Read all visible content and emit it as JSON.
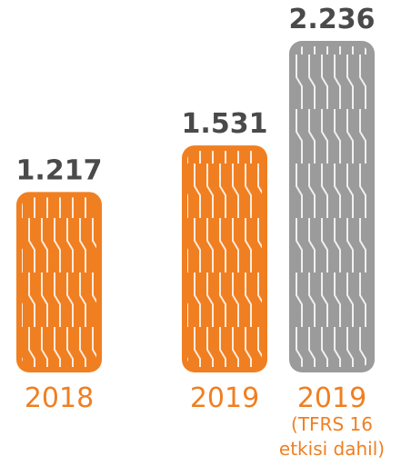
{
  "chart_data": {
    "type": "bar",
    "categories": [
      "2018",
      "2019",
      "2019"
    ],
    "values": [
      1.217,
      1.531,
      2.236
    ],
    "colors": [
      "#f07f21",
      "#f07f21",
      "#9b9b9b"
    ],
    "category_note": {
      "index": 2,
      "text": "(TFRS 16 etkisi dahil)"
    }
  }
}
